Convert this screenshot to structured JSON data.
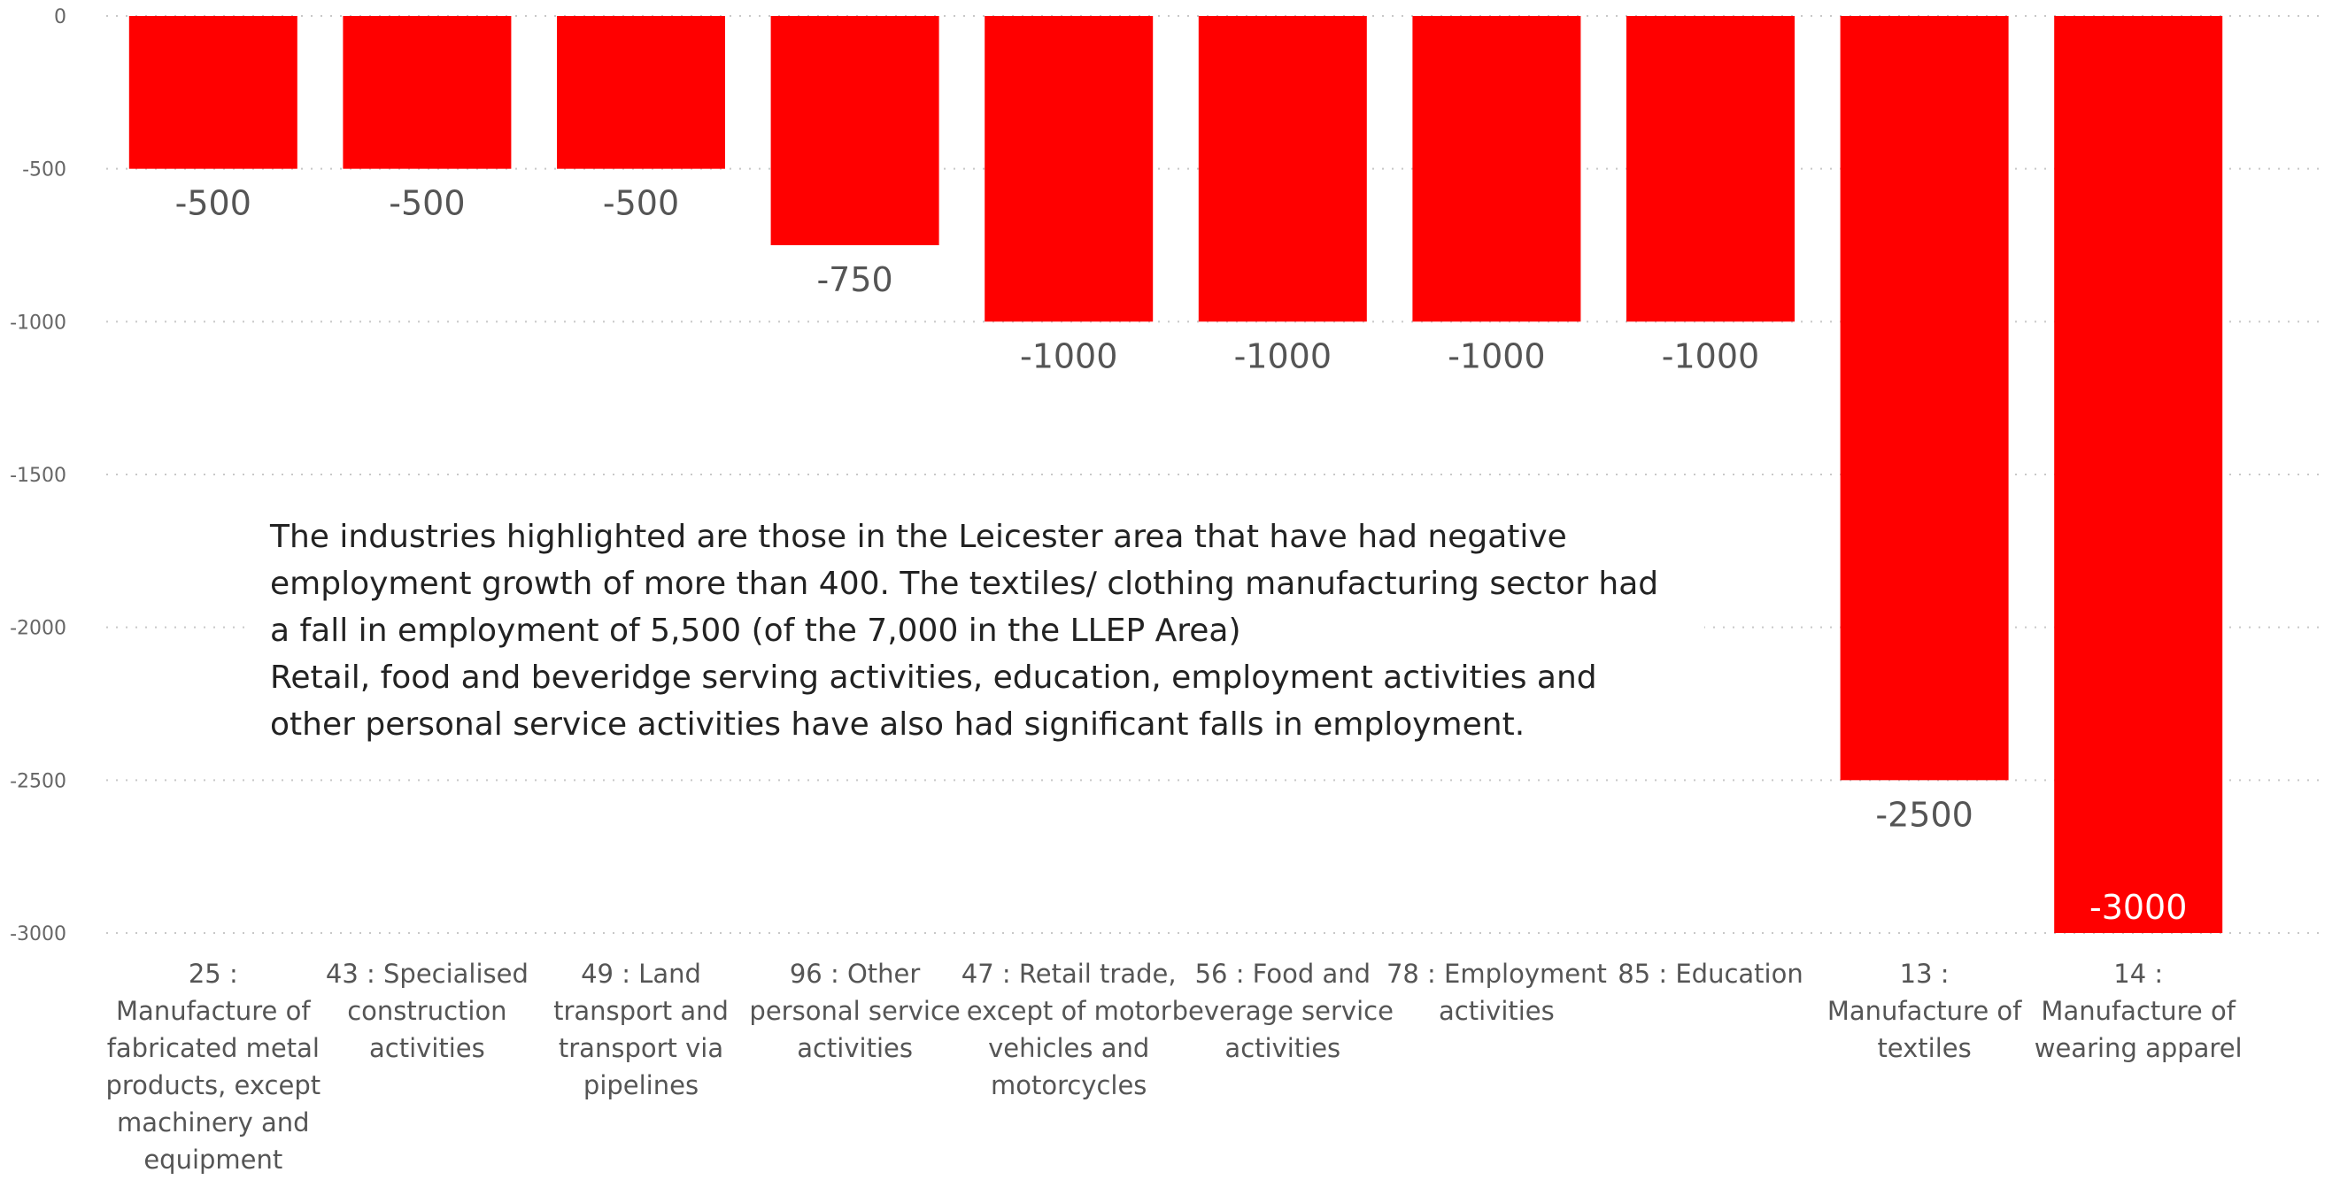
{
  "chart_data": {
    "type": "bar",
    "categories": [
      "25 : Manufacture of fabricated metal products, except machinery and equipment",
      "43 : Specialised construction activities",
      "49 : Land transport and transport via pipelines",
      "96 : Other personal service activities",
      "47 : Retail trade, except of motor vehicles and motorcycles",
      "56 : Food and beverage service activities",
      "78 : Employment activities",
      "85 : Education",
      "13 : Manufacture of textiles",
      "14 : Manufacture of wearing apparel"
    ],
    "category_lines": [
      [
        "25 :",
        "Manufacture of",
        "fabricated metal",
        "products, except",
        "machinery and",
        "equipment"
      ],
      [
        "43 : Specialised",
        "construction",
        "activities"
      ],
      [
        "49 : Land",
        "transport and",
        "transport via",
        "pipelines"
      ],
      [
        "96 : Other",
        "personal service",
        "activities"
      ],
      [
        "47 : Retail trade,",
        "except of motor",
        "vehicles and",
        "motorcycles"
      ],
      [
        "56 : Food and",
        "beverage service",
        "activities"
      ],
      [
        "78 : Employment",
        "activities"
      ],
      [
        "85 : Education"
      ],
      [
        "13 :",
        "Manufacture of",
        "textiles"
      ],
      [
        "14 :",
        "Manufacture of",
        "wearing apparel"
      ]
    ],
    "values": [
      -500,
      -500,
      -500,
      -750,
      -1000,
      -1000,
      -1000,
      -1000,
      -2500,
      -3000
    ],
    "data_labels": [
      "-500",
      "-500",
      "-500",
      "-750",
      "-1000",
      "-1000",
      "-1000",
      "-1000",
      "-2500",
      "-3000"
    ],
    "yticks": [
      "0",
      "-500",
      "-1000",
      "-1500",
      "-2000",
      "-2500",
      "-3000"
    ],
    "ylim": [
      -3000,
      0
    ],
    "title": "",
    "xlabel": "",
    "ylabel": "",
    "grid": true,
    "bar_color": "#ff0000"
  },
  "annotation": {
    "paragraphs": [
      "The industries highlighted are those in the Leicester area that have had negative employment growth of more than 400.  The textiles/ clothing manufacturing sector had a fall in employment of 5,500 (of the 7,000 in the LLEP Area)",
      "Retail, food and beveridge serving activities, education, employment activities and other personal service activities have also had significant falls in employment."
    ]
  }
}
